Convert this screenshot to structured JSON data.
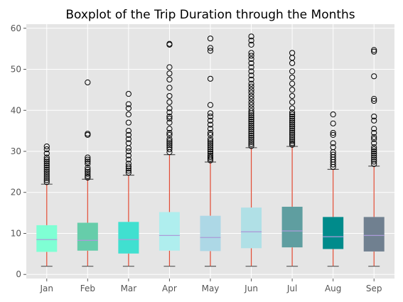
{
  "chart_data": {
    "type": "boxplot",
    "title": "Boxplot of the Trip Duration through the Months",
    "xlabel": "",
    "ylabel": "",
    "categories": [
      "Jan",
      "Feb",
      "Mar",
      "Apr",
      "May",
      "Jun",
      "Jul",
      "Aug",
      "Sep"
    ],
    "ylim": [
      -1,
      61
    ],
    "yticks": [
      0,
      10,
      20,
      30,
      40,
      50,
      60
    ],
    "grid": true,
    "legend": "none",
    "background_color": "#e5e5e5",
    "grid_color": "#ffffff",
    "whisker_color": "#e24a33",
    "median_color": "#ab9bd9",
    "flier_color": "#000000",
    "boxes": [
      {
        "category": "Jan",
        "whislo": 2,
        "q1": 5.5,
        "median": 8.5,
        "q3": 12,
        "whishi": 22,
        "fliers": [
          22.5,
          23,
          23.5,
          24,
          24.5,
          25,
          25.5,
          26,
          26.5,
          27,
          27.5,
          28,
          28.5,
          29.5,
          30.5,
          31.2
        ],
        "color": "#7fffd4"
      },
      {
        "category": "Feb",
        "whislo": 2,
        "q1": 5.8,
        "median": 8.3,
        "q3": 12.6,
        "whishi": 23.2,
        "fliers": [
          23.6,
          24,
          24.5,
          25,
          25.5,
          26,
          27,
          27.5,
          28,
          28.5,
          34,
          34.3,
          46.8
        ],
        "color": "#66cdaa"
      },
      {
        "category": "Mar",
        "whislo": 2,
        "q1": 5.1,
        "median": 8.5,
        "q3": 12.8,
        "whishi": 24.2,
        "fliers": [
          24.8,
          25.3,
          25.8,
          26.3,
          27,
          28,
          29,
          30,
          30.8,
          32,
          33,
          34,
          35,
          37,
          39,
          40.5,
          41.5,
          44
        ],
        "color": "#40e0d0"
      },
      {
        "category": "Apr",
        "whislo": 2,
        "q1": 5.8,
        "median": 9.5,
        "q3": 15.2,
        "whishi": 29.2,
        "fliers": [
          29.8,
          30.5,
          31,
          31.5,
          32,
          32.5,
          33,
          34,
          34.5,
          35.5,
          37,
          38,
          38.5,
          39.5,
          40.5,
          42,
          43.5,
          45.5,
          47.5,
          49,
          50.5,
          56,
          56.2
        ],
        "color": "#afeeee"
      },
      {
        "category": "May",
        "whislo": 2,
        "q1": 5.7,
        "median": 9,
        "q3": 14.3,
        "whishi": 27.4,
        "fliers": [
          27.8,
          28.2,
          28.6,
          29,
          29.5,
          30,
          30.5,
          31,
          31.5,
          32,
          32.5,
          33,
          34,
          34.5,
          35.5,
          36.5,
          37.5,
          38.5,
          39.3,
          41.3,
          47.7,
          54.5,
          55.2,
          57.5
        ],
        "color": "#add8e6"
      },
      {
        "category": "Jun",
        "whislo": 2,
        "q1": 6.4,
        "median": 10.4,
        "q3": 16.3,
        "whishi": 30.9,
        "fliers": [
          31.3,
          31.8,
          32.3,
          32.8,
          33.3,
          33.8,
          34.3,
          34.8,
          35.3,
          35.8,
          36.3,
          36.8,
          37.3,
          37.8,
          38.3,
          38.8,
          39.3,
          39.8,
          40.5,
          41.3,
          42,
          42.8,
          43.5,
          44.3,
          45,
          45.8,
          46.5,
          47.5,
          48.5,
          49.5,
          50.5,
          51.5,
          52.5,
          53.3,
          54,
          56,
          57,
          58
        ],
        "color": "#b0e0e6"
      },
      {
        "category": "Jul",
        "whislo": 2,
        "q1": 6.6,
        "median": 10.6,
        "q3": 16.5,
        "whishi": 31.2,
        "fliers": [
          31.6,
          32,
          32.5,
          33,
          33.5,
          34,
          34.5,
          35,
          35.5,
          36,
          36.5,
          37,
          37.5,
          38,
          38.5,
          39,
          39.5,
          40.5,
          42,
          43.5,
          45,
          46.5,
          48,
          49.5,
          51.5,
          52.8,
          54
        ],
        "color": "#5f9ea0"
      },
      {
        "category": "Aug",
        "whislo": 2,
        "q1": 6.2,
        "median": 9.2,
        "q3": 14,
        "whishi": 25.6,
        "fliers": [
          26.2,
          26.8,
          27.4,
          28,
          28.6,
          29.2,
          29.8,
          31,
          32,
          34,
          34.5,
          36.8,
          39
        ],
        "color": "#008b8b"
      },
      {
        "category": "Sep",
        "whislo": 2,
        "q1": 5.6,
        "median": 9.5,
        "q3": 14,
        "whishi": 26.4,
        "fliers": [
          26.9,
          27.5,
          28,
          28.5,
          29,
          29.5,
          30,
          30.5,
          31,
          32,
          33,
          33.5,
          34.5,
          35.5,
          37.5,
          38.5,
          42.3,
          42.8,
          48.3,
          54.3,
          54.7
        ],
        "color": "#708090"
      }
    ]
  }
}
